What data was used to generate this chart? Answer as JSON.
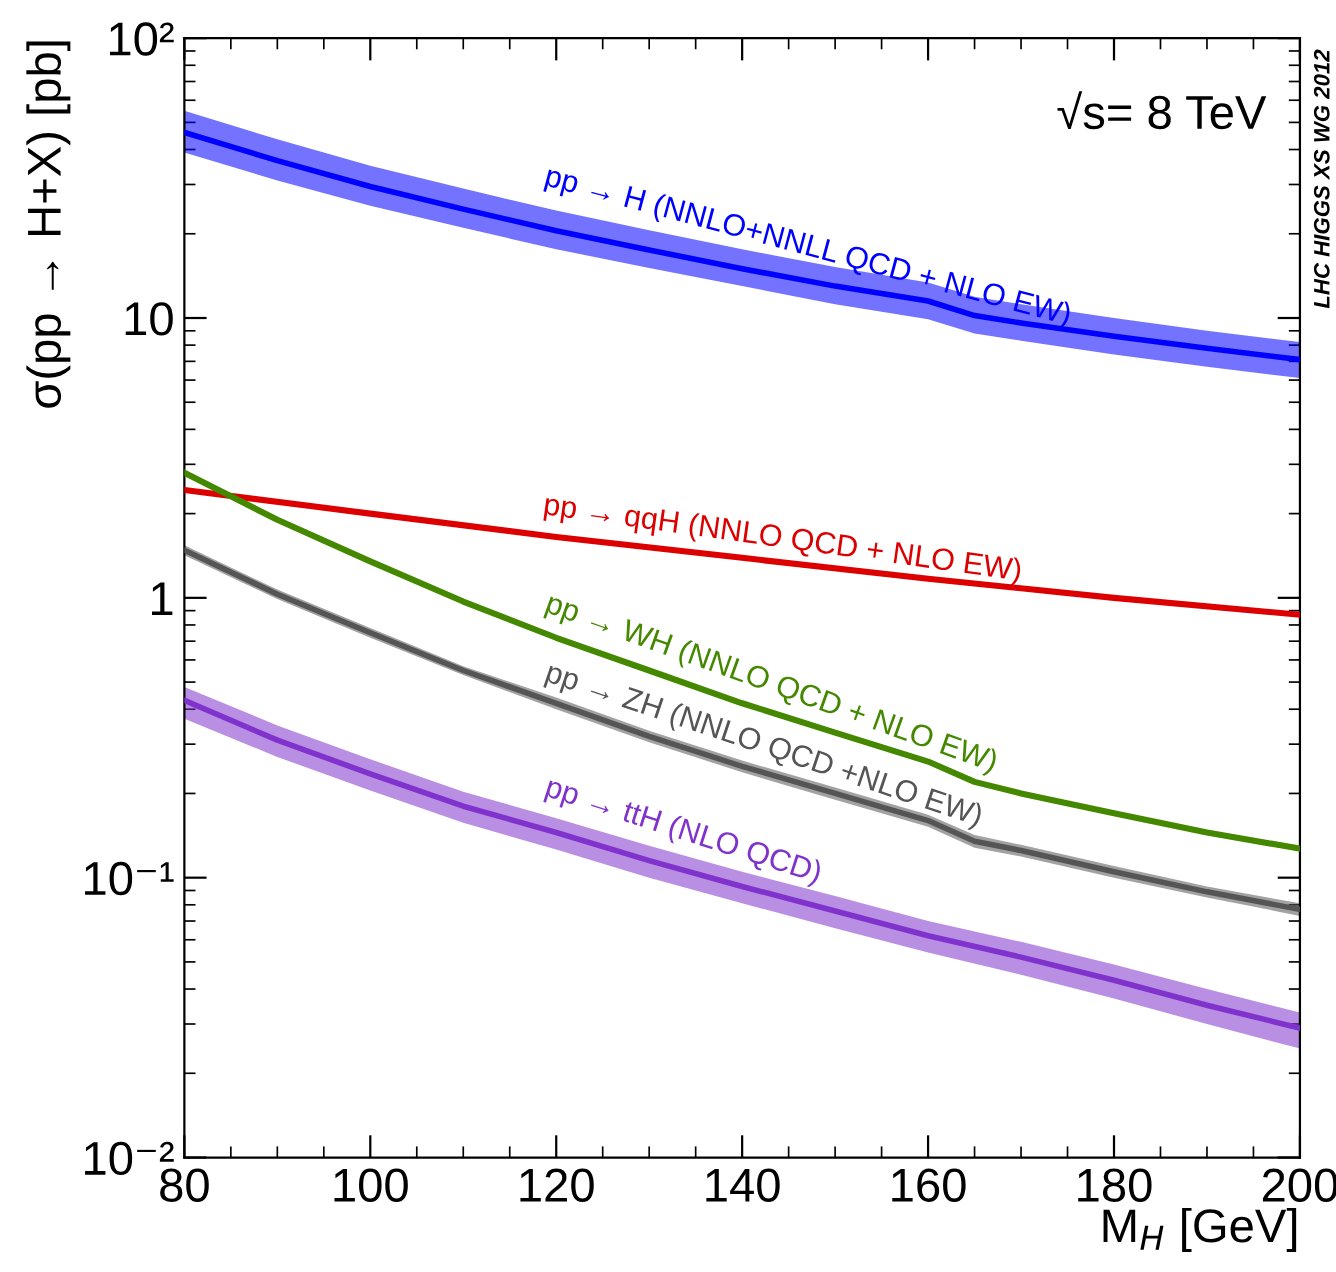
{
  "chart_data": {
    "type": "line",
    "xlabel": "M$_{H}$ [GeV]",
    "ylabel": "σ(pp → H+X) [pb]",
    "log": "y",
    "xlim": [
      80,
      200
    ],
    "xticks": [
      80,
      100,
      120,
      140,
      160,
      180,
      200
    ],
    "ylim": [
      0.01,
      100
    ],
    "yticks": [
      {
        "value": 0.01,
        "label": "10⁻²"
      },
      {
        "value": 0.1,
        "label": "10⁻¹"
      },
      1,
      10,
      {
        "value": 100,
        "label": "10²"
      }
    ],
    "marker": "none",
    "line_style": "solid",
    "annotations": [
      "√s= 8 TeV",
      "LHC HIGGS XS WG 2012"
    ],
    "series": [
      {
        "name": "pp → H (NNLO+NNLL QCD + NLO EW)",
        "color": "#0000ff",
        "x": [
          80,
          90,
          100,
          110,
          120,
          130,
          140,
          150,
          160,
          165,
          170,
          180,
          190,
          200
        ],
        "values": [
          46,
          36.5,
          29.5,
          24.5,
          20.5,
          17.5,
          15.0,
          13.0,
          11.5,
          10.2,
          9.6,
          8.6,
          7.8,
          7.1
        ],
        "lower": [
          39,
          31,
          25.2,
          21,
          17.6,
          15.1,
          13,
          11.2,
          9.9,
          8.8,
          8.3,
          7.4,
          6.7,
          6.1
        ],
        "upper": [
          55,
          43.5,
          35,
          29,
          24.2,
          20.6,
          17.6,
          15.2,
          13.4,
          11.9,
          11.2,
          10,
          9,
          8.2
        ]
      },
      {
        "name": "pp → qqH (NNLO QCD + NLO EW)",
        "color": "#dd0000",
        "x": [
          80,
          100,
          120,
          140,
          160,
          180,
          200
        ],
        "values": [
          2.43,
          2.0,
          1.65,
          1.39,
          1.17,
          1.0,
          0.87
        ]
      },
      {
        "name": "pp → WH (NNLO QCD + NLO EW)",
        "color": "#448800",
        "x": [
          80,
          90,
          100,
          110,
          120,
          130,
          140,
          150,
          160,
          165,
          170,
          180,
          190,
          200
        ],
        "values": [
          2.8,
          1.9,
          1.35,
          0.97,
          0.72,
          0.55,
          0.42,
          0.33,
          0.26,
          0.22,
          0.2,
          0.17,
          0.145,
          0.127
        ]
      },
      {
        "name": "pp → ZH (NNLO QCD +NLO EW)",
        "color": "#555555",
        "x": [
          80,
          90,
          100,
          110,
          120,
          130,
          140,
          150,
          160,
          165,
          170,
          180,
          190,
          200
        ],
        "values": [
          1.48,
          1.03,
          0.75,
          0.55,
          0.42,
          0.32,
          0.25,
          0.2,
          0.16,
          0.135,
          0.125,
          0.105,
          0.089,
          0.077
        ],
        "lower": [
          1.42,
          0.99,
          0.72,
          0.53,
          0.4,
          0.305,
          0.238,
          0.19,
          0.152,
          0.128,
          0.119,
          0.1,
          0.085,
          0.073
        ],
        "upper": [
          1.54,
          1.07,
          0.78,
          0.57,
          0.44,
          0.335,
          0.262,
          0.21,
          0.168,
          0.142,
          0.131,
          0.11,
          0.093,
          0.081
        ]
      },
      {
        "name": "pp → ttH (NLO QCD)",
        "color": "#8033cc",
        "x": [
          80,
          90,
          100,
          110,
          120,
          130,
          140,
          150,
          160,
          170,
          180,
          190,
          200
        ],
        "values": [
          0.43,
          0.31,
          0.235,
          0.18,
          0.145,
          0.115,
          0.093,
          0.076,
          0.062,
          0.052,
          0.043,
          0.035,
          0.029
        ],
        "lower": [
          0.37,
          0.27,
          0.205,
          0.157,
          0.126,
          0.1,
          0.081,
          0.066,
          0.054,
          0.045,
          0.037,
          0.03,
          0.0245
        ],
        "upper": [
          0.48,
          0.35,
          0.265,
          0.203,
          0.163,
          0.13,
          0.105,
          0.086,
          0.07,
          0.059,
          0.049,
          0.04,
          0.033
        ]
      }
    ]
  }
}
